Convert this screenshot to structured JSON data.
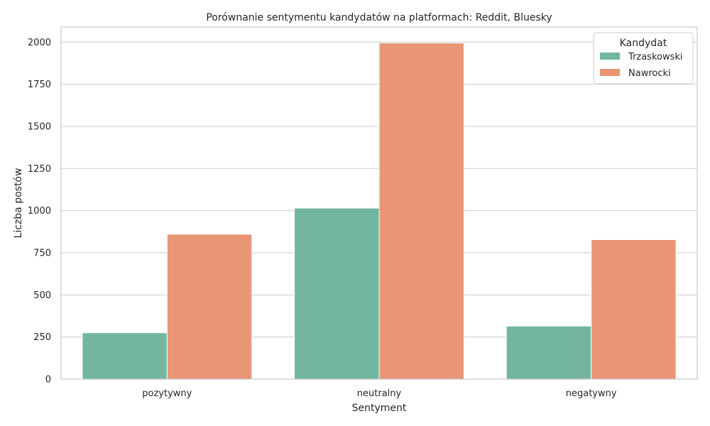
{
  "chart_data": {
    "type": "bar",
    "title": "Porównanie sentymentu kandydatów na platformach: Reddit, Bluesky",
    "xlabel": "Sentyment",
    "ylabel": "Liczba postów",
    "categories": [
      "pozytywny",
      "neutralny",
      "negatywny"
    ],
    "series": [
      {
        "name": "Trzaskowski",
        "color": "#72b6a1",
        "values": [
          275,
          1015,
          315
        ]
      },
      {
        "name": "Nawrocki",
        "color": "#e99675",
        "values": [
          860,
          1995,
          828
        ]
      }
    ],
    "ylim": [
      0,
      2090
    ],
    "yticks": [
      0,
      250,
      500,
      750,
      1000,
      1250,
      1500,
      1750,
      2000
    ],
    "grid": true,
    "legend": {
      "title": "Kandydat",
      "placement": "top-right"
    }
  }
}
